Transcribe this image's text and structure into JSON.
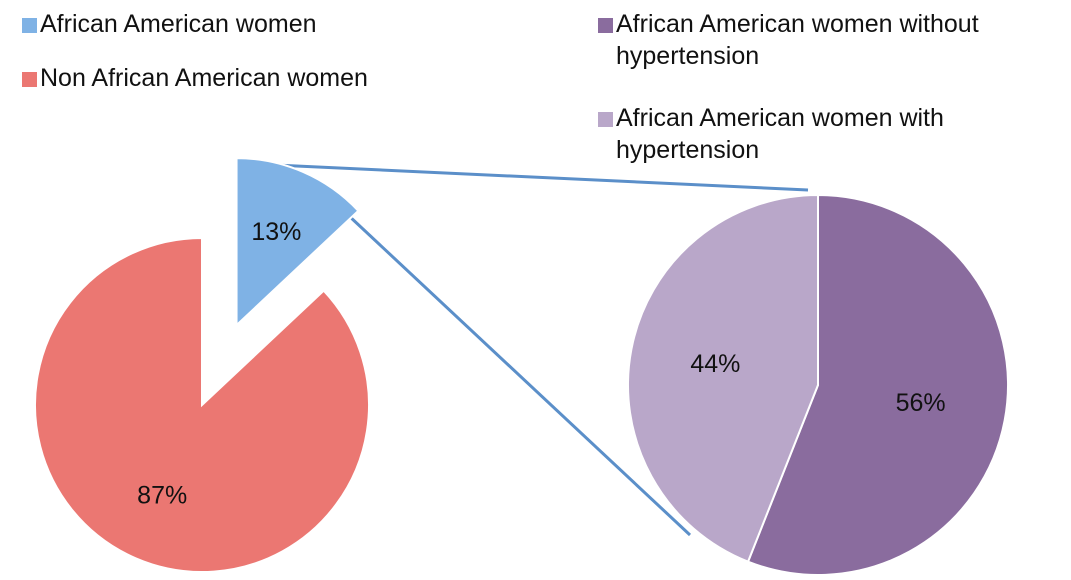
{
  "chart_data": [
    {
      "type": "pie",
      "categories": [
        "African American women",
        "Non African American women"
      ],
      "values": [
        13,
        87
      ],
      "value_labels": [
        "13%",
        "87%"
      ],
      "colors": [
        "#7fb2e5",
        "#eb7772"
      ]
    },
    {
      "type": "pie",
      "categories": [
        "African American women without hypertension",
        "African American women with hypertension"
      ],
      "values": [
        56,
        44
      ],
      "value_labels": [
        "56%",
        "44%"
      ],
      "colors": [
        "#8a6c9e",
        "#b9a7c9"
      ]
    }
  ]
}
